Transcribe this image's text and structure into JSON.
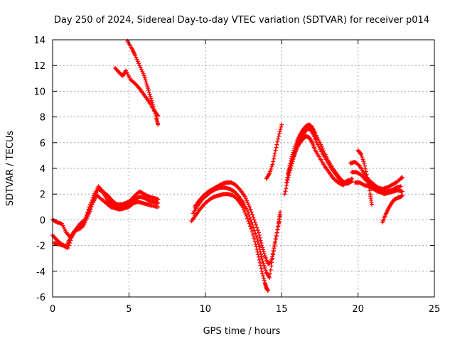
{
  "chart_data": {
    "type": "scatter",
    "title": "Day 250 of 2024, Sidereal Day-to-day VTEC variation (SDTVAR) for receiver p014",
    "xlabel": "GPS time / hours",
    "ylabel": "SDTVAR / TECUs",
    "xlim": [
      0,
      25
    ],
    "ylim": [
      -6,
      14
    ],
    "xticks": [
      0,
      5,
      10,
      15,
      20,
      25
    ],
    "yticks": [
      -6,
      -4,
      -2,
      0,
      2,
      4,
      6,
      8,
      10,
      12,
      14
    ],
    "grid": true,
    "marker": "+",
    "color": "#ff0000",
    "series": [
      {
        "points": [
          [
            0.0,
            -1.2
          ],
          [
            0.3,
            -1.6
          ],
          [
            0.6,
            -1.9
          ],
          [
            0.9,
            -2.1
          ],
          [
            1.1,
            -1.5
          ],
          [
            1.4,
            -0.9
          ],
          [
            1.8,
            -0.7
          ],
          [
            2.1,
            -0.2
          ],
          [
            2.4,
            0.6
          ],
          [
            2.7,
            1.6
          ],
          [
            3.0,
            2.4
          ],
          [
            3.3,
            2.1
          ],
          [
            3.6,
            1.5
          ],
          [
            3.9,
            1.2
          ],
          [
            4.2,
            1.0
          ],
          [
            4.5,
            1.0
          ],
          [
            4.8,
            1.1
          ],
          [
            5.1,
            1.2
          ],
          [
            5.4,
            1.6
          ],
          [
            5.7,
            1.8
          ],
          [
            6.0,
            1.7
          ],
          [
            6.3,
            1.5
          ],
          [
            6.6,
            1.4
          ],
          [
            6.9,
            1.3
          ]
        ]
      },
      {
        "points": [
          [
            0.0,
            0.0
          ],
          [
            0.3,
            -0.2
          ],
          [
            0.6,
            -0.3
          ],
          [
            0.9,
            -1.0
          ],
          [
            1.2,
            -1.4
          ],
          [
            1.5,
            -0.8
          ],
          [
            1.8,
            -0.3
          ],
          [
            2.1,
            0.0
          ],
          [
            2.4,
            1.0
          ],
          [
            2.7,
            1.9
          ],
          [
            3.0,
            2.6
          ],
          [
            3.3,
            2.2
          ],
          [
            3.6,
            1.9
          ],
          [
            3.9,
            1.5
          ],
          [
            4.2,
            1.2
          ],
          [
            4.5,
            1.2
          ],
          [
            4.8,
            1.3
          ],
          [
            5.1,
            1.5
          ],
          [
            5.4,
            1.9
          ],
          [
            5.7,
            2.2
          ],
          [
            6.0,
            2.0
          ],
          [
            6.3,
            1.8
          ],
          [
            6.6,
            1.7
          ],
          [
            6.9,
            1.6
          ]
        ]
      },
      {
        "points": [
          [
            0.1,
            -1.8
          ],
          [
            0.4,
            -1.9
          ],
          [
            0.7,
            -2.0
          ],
          [
            1.0,
            -2.2
          ],
          [
            1.3,
            -1.2
          ],
          [
            1.6,
            -0.6
          ],
          [
            2.0,
            -0.5
          ],
          [
            2.3,
            0.3
          ],
          [
            2.6,
            1.2
          ],
          [
            2.9,
            1.9
          ],
          [
            3.2,
            1.6
          ],
          [
            3.5,
            1.3
          ],
          [
            3.8,
            1.0
          ],
          [
            4.1,
            0.9
          ],
          [
            4.4,
            0.8
          ],
          [
            4.7,
            0.9
          ],
          [
            5.0,
            1.0
          ],
          [
            5.3,
            1.3
          ],
          [
            5.6,
            1.4
          ],
          [
            5.9,
            1.3
          ],
          [
            6.2,
            1.2
          ],
          [
            6.5,
            1.1
          ],
          [
            6.9,
            1.0
          ]
        ]
      },
      {
        "points": [
          [
            4.1,
            11.8
          ],
          [
            4.4,
            11.4
          ],
          [
            4.6,
            11.2
          ],
          [
            4.8,
            11.6
          ],
          [
            5.1,
            10.9
          ],
          [
            5.4,
            10.6
          ],
          [
            5.7,
            10.2
          ],
          [
            6.0,
            9.7
          ],
          [
            6.3,
            9.2
          ],
          [
            6.6,
            8.6
          ],
          [
            6.9,
            8.1
          ]
        ]
      },
      {
        "points": [
          [
            4.9,
            13.9
          ],
          [
            5.2,
            13.3
          ],
          [
            5.4,
            12.8
          ],
          [
            5.7,
            12.0
          ],
          [
            6.0,
            11.2
          ],
          [
            6.2,
            10.4
          ],
          [
            6.4,
            9.6
          ],
          [
            6.6,
            8.8
          ],
          [
            6.8,
            7.9
          ],
          [
            6.9,
            7.4
          ]
        ]
      },
      {
        "points": [
          [
            9.1,
            -0.1
          ],
          [
            9.4,
            0.4
          ],
          [
            9.7,
            0.9
          ],
          [
            10.0,
            1.3
          ],
          [
            10.3,
            1.6
          ],
          [
            10.6,
            1.8
          ],
          [
            10.9,
            1.9
          ],
          [
            11.2,
            2.0
          ],
          [
            11.5,
            2.0
          ],
          [
            11.8,
            1.9
          ],
          [
            12.1,
            1.6
          ],
          [
            12.4,
            1.1
          ],
          [
            12.7,
            0.3
          ],
          [
            13.0,
            -0.7
          ],
          [
            13.3,
            -1.9
          ],
          [
            13.5,
            -2.9
          ],
          [
            13.7,
            -4.0
          ],
          [
            13.9,
            -4.9
          ],
          [
            14.0,
            -5.3
          ],
          [
            14.1,
            -5.5
          ]
        ]
      },
      {
        "points": [
          [
            9.2,
            0.5
          ],
          [
            9.5,
            1.1
          ],
          [
            9.8,
            1.6
          ],
          [
            10.1,
            1.9
          ],
          [
            10.4,
            2.2
          ],
          [
            10.7,
            2.4
          ],
          [
            11.0,
            2.5
          ],
          [
            11.3,
            2.5
          ],
          [
            11.6,
            2.4
          ],
          [
            11.9,
            2.2
          ],
          [
            12.2,
            1.8
          ],
          [
            12.5,
            1.3
          ],
          [
            12.8,
            0.6
          ],
          [
            13.1,
            -0.4
          ],
          [
            13.4,
            -1.5
          ],
          [
            13.6,
            -2.5
          ],
          [
            13.8,
            -3.4
          ],
          [
            14.0,
            -4.1
          ],
          [
            14.2,
            -4.5
          ],
          [
            14.4,
            -3.0
          ],
          [
            14.6,
            -1.5
          ],
          [
            14.8,
            -0.3
          ],
          [
            14.9,
            0.6
          ]
        ]
      },
      {
        "points": [
          [
            9.3,
            1.0
          ],
          [
            9.6,
            1.5
          ],
          [
            9.9,
            1.9
          ],
          [
            10.2,
            2.2
          ],
          [
            10.5,
            2.4
          ],
          [
            10.8,
            2.6
          ],
          [
            11.1,
            2.8
          ],
          [
            11.4,
            2.9
          ],
          [
            11.7,
            2.9
          ],
          [
            12.0,
            2.7
          ],
          [
            12.3,
            2.3
          ],
          [
            12.6,
            1.8
          ],
          [
            12.9,
            1.0
          ],
          [
            13.2,
            0.0
          ],
          [
            13.5,
            -1.0
          ],
          [
            13.7,
            -2.0
          ],
          [
            13.9,
            -2.8
          ],
          [
            14.1,
            -3.4
          ],
          [
            14.3,
            -3.3
          ],
          [
            14.5,
            -2.2
          ],
          [
            14.7,
            -1.0
          ],
          [
            14.9,
            0.3
          ]
        ]
      },
      {
        "points": [
          [
            14.0,
            3.2
          ],
          [
            14.2,
            3.6
          ],
          [
            14.4,
            4.3
          ],
          [
            14.6,
            5.4
          ],
          [
            14.8,
            6.5
          ],
          [
            15.0,
            7.4
          ]
        ]
      },
      {
        "points": [
          [
            15.2,
            2.0
          ],
          [
            15.4,
            3.1
          ],
          [
            15.6,
            4.0
          ],
          [
            15.8,
            4.9
          ],
          [
            16.0,
            5.6
          ],
          [
            16.2,
            6.0
          ],
          [
            16.4,
            6.3
          ],
          [
            16.6,
            6.5
          ],
          [
            16.8,
            6.4
          ],
          [
            17.0,
            6.0
          ],
          [
            17.2,
            5.4
          ],
          [
            17.5,
            4.8
          ],
          [
            17.8,
            4.2
          ],
          [
            18.1,
            3.7
          ],
          [
            18.4,
            3.2
          ],
          [
            18.7,
            2.9
          ],
          [
            19.0,
            2.7
          ],
          [
            19.3,
            2.9
          ],
          [
            19.6,
            3.2
          ]
        ]
      },
      {
        "points": [
          [
            15.3,
            2.9
          ],
          [
            15.5,
            3.9
          ],
          [
            15.7,
            4.7
          ],
          [
            15.9,
            5.4
          ],
          [
            16.1,
            6.0
          ],
          [
            16.3,
            6.4
          ],
          [
            16.5,
            6.8
          ],
          [
            16.7,
            7.1
          ],
          [
            16.9,
            7.0
          ],
          [
            17.1,
            6.6
          ],
          [
            17.3,
            6.0
          ],
          [
            17.6,
            5.3
          ],
          [
            17.9,
            4.7
          ],
          [
            18.2,
            4.1
          ],
          [
            18.5,
            3.6
          ],
          [
            18.8,
            3.1
          ],
          [
            19.1,
            2.9
          ],
          [
            19.4,
            3.1
          ]
        ]
      },
      {
        "points": [
          [
            15.4,
            3.6
          ],
          [
            15.6,
            4.6
          ],
          [
            15.8,
            5.4
          ],
          [
            16.0,
            6.1
          ],
          [
            16.2,
            6.6
          ],
          [
            16.4,
            7.0
          ],
          [
            16.6,
            7.3
          ],
          [
            16.8,
            7.4
          ],
          [
            17.0,
            7.2
          ],
          [
            17.2,
            6.7
          ],
          [
            17.5,
            6.0
          ],
          [
            17.8,
            5.2
          ],
          [
            18.1,
            4.5
          ],
          [
            18.4,
            3.9
          ],
          [
            18.7,
            3.4
          ],
          [
            19.0,
            3.0
          ],
          [
            19.3,
            2.8
          ],
          [
            19.6,
            3.0
          ]
        ]
      },
      {
        "points": [
          [
            19.5,
            4.4
          ],
          [
            19.8,
            4.5
          ],
          [
            20.1,
            4.2
          ],
          [
            20.4,
            3.6
          ],
          [
            20.7,
            3.1
          ],
          [
            21.0,
            2.8
          ],
          [
            21.3,
            2.5
          ],
          [
            21.6,
            2.4
          ],
          [
            21.9,
            2.5
          ],
          [
            22.2,
            2.7
          ],
          [
            22.5,
            2.9
          ],
          [
            22.8,
            3.2
          ],
          [
            22.9,
            3.3
          ]
        ]
      },
      {
        "points": [
          [
            19.6,
            3.7
          ],
          [
            19.9,
            3.7
          ],
          [
            20.2,
            3.5
          ],
          [
            20.5,
            3.1
          ],
          [
            20.8,
            2.8
          ],
          [
            21.1,
            2.6
          ],
          [
            21.4,
            2.3
          ],
          [
            21.7,
            2.0
          ],
          [
            22.0,
            2.1
          ],
          [
            22.3,
            2.2
          ],
          [
            22.6,
            2.3
          ],
          [
            22.9,
            2.2
          ]
        ]
      },
      {
        "points": [
          [
            20.0,
            5.4
          ],
          [
            20.2,
            5.1
          ],
          [
            20.4,
            4.4
          ],
          [
            20.6,
            3.3
          ],
          [
            20.8,
            2.0
          ],
          [
            20.9,
            1.2
          ]
        ]
      },
      {
        "points": [
          [
            19.8,
            2.9
          ],
          [
            20.1,
            2.9
          ],
          [
            20.4,
            2.7
          ],
          [
            20.7,
            2.6
          ],
          [
            21.0,
            2.4
          ],
          [
            21.3,
            2.2
          ],
          [
            21.6,
            2.1
          ],
          [
            21.9,
            2.2
          ],
          [
            22.2,
            2.3
          ],
          [
            22.5,
            2.5
          ],
          [
            22.8,
            2.6
          ]
        ]
      },
      {
        "points": [
          [
            21.6,
            -0.2
          ],
          [
            21.8,
            0.4
          ],
          [
            22.0,
            0.9
          ],
          [
            22.2,
            1.3
          ],
          [
            22.4,
            1.6
          ],
          [
            22.6,
            1.7
          ],
          [
            22.8,
            1.8
          ],
          [
            22.9,
            1.9
          ]
        ]
      }
    ]
  }
}
